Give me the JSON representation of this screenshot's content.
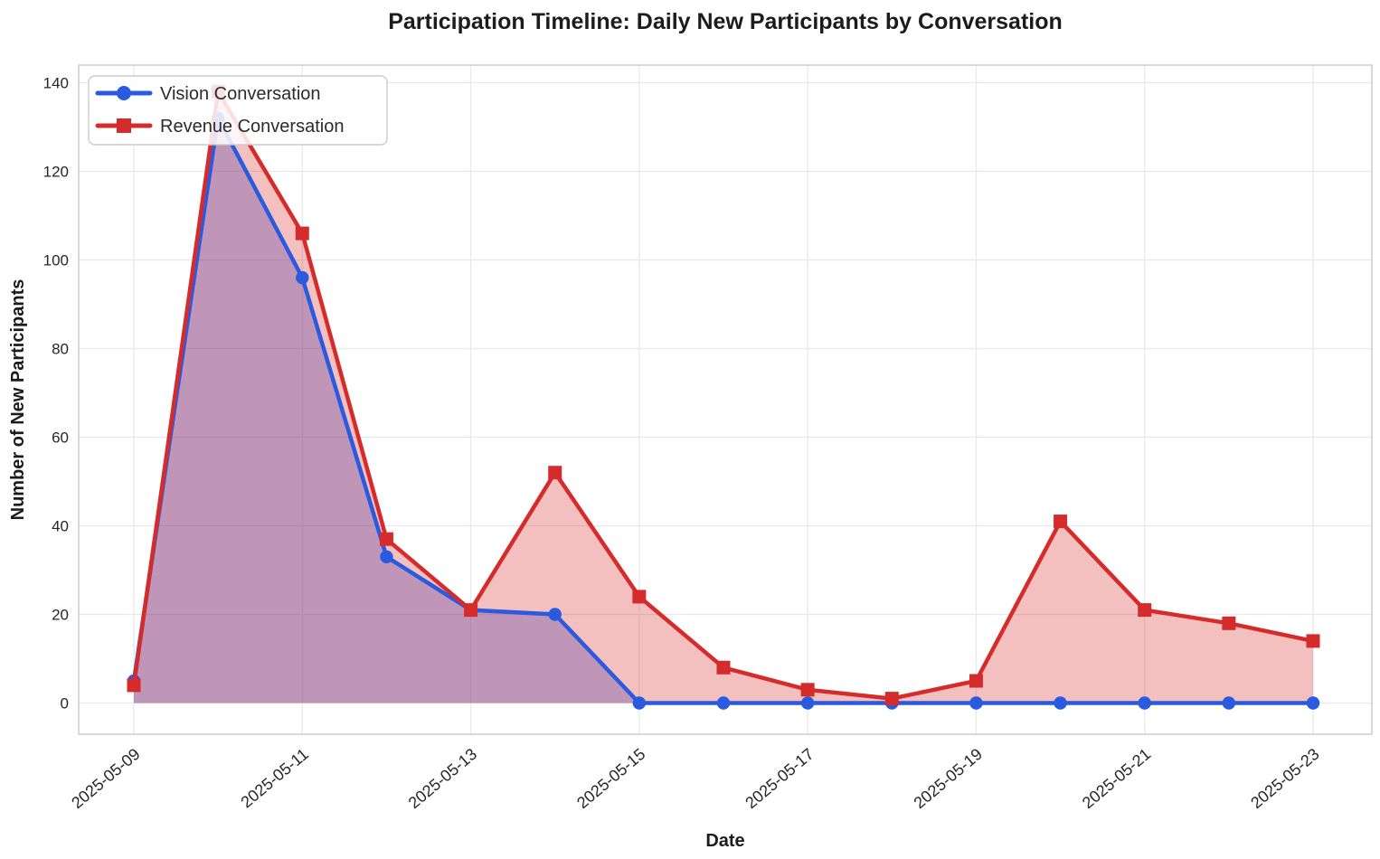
{
  "chart_data": {
    "type": "line",
    "title": "Participation Timeline: Daily New Participants by Conversation",
    "xlabel": "Date",
    "ylabel": "Number of New Participants",
    "x": [
      "2025-05-09",
      "2025-05-10",
      "2025-05-11",
      "2025-05-12",
      "2025-05-13",
      "2025-05-14",
      "2025-05-15",
      "2025-05-16",
      "2025-05-17",
      "2025-05-18",
      "2025-05-19",
      "2025-05-20",
      "2025-05-21",
      "2025-05-22",
      "2025-05-23"
    ],
    "x_tick_labels": [
      "2025-05-09",
      "2025-05-11",
      "2025-05-13",
      "2025-05-15",
      "2025-05-17",
      "2025-05-19",
      "2025-05-21",
      "2025-05-23"
    ],
    "y_ticks": [
      0,
      20,
      40,
      60,
      80,
      100,
      120,
      140
    ],
    "ylim": [
      -7,
      144
    ],
    "grid": true,
    "legend_position": "upper-left",
    "series": [
      {
        "name": "Vision Conversation",
        "color": "#2a5adf",
        "marker": "circle",
        "fill_alpha": 0.35,
        "values": [
          5,
          132,
          96,
          33,
          21,
          20,
          0,
          0,
          0,
          0,
          0,
          0,
          0,
          0,
          0
        ]
      },
      {
        "name": "Revenue Conversation",
        "color": "#d62b2b",
        "marker": "square",
        "fill_alpha": 0.3,
        "values": [
          4,
          138,
          106,
          37,
          21,
          52,
          24,
          8,
          3,
          1,
          5,
          41,
          21,
          18,
          14
        ]
      }
    ],
    "colors": {
      "grid": "#e7e7ec",
      "spine": "#c9c9ce",
      "tick_text": "#262626",
      "legend_border": "#cccccc"
    }
  }
}
